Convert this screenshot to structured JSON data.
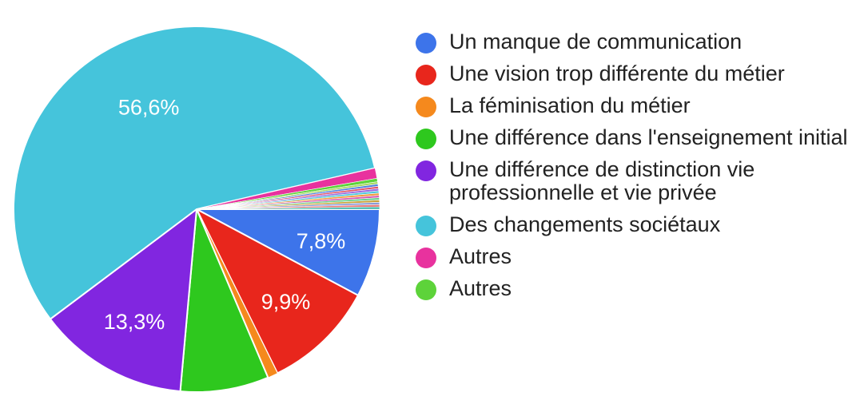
{
  "chart_data": {
    "type": "pie",
    "start_angle_deg": 90,
    "direction": "clockwise",
    "slices": [
      {
        "name": "Un manque de communication",
        "value": 7.8,
        "label": "7,8%",
        "color": "#3d74ea"
      },
      {
        "name": "Une vision trop différente du métier",
        "value": 9.9,
        "label": "9,9%",
        "color": "#e8261c"
      },
      {
        "name": "La féminisation du métier",
        "value": 0.9,
        "label": "",
        "color": "#f5891d"
      },
      {
        "name": "Une différence dans l'enseignement initial",
        "value": 7.8,
        "label": "",
        "color": "#2ec81e"
      },
      {
        "name": "Une différence de distinction vie professionnelle et vie privée",
        "value": 13.3,
        "label": "13,3%",
        "color": "#8126e0"
      },
      {
        "name": "Des changements sociétaux",
        "value": 56.6,
        "label": "56,6%",
        "color": "#45c4db"
      },
      {
        "name": "Autres",
        "value": 0.9,
        "label": "",
        "color": "#e8329e"
      },
      {
        "name": "Autres",
        "value": 0.3,
        "label": "",
        "color": "#5dd33a"
      },
      {
        "name": "",
        "value": 0.2,
        "label": "",
        "color": "#a7d860"
      },
      {
        "name": "",
        "value": 0.2,
        "label": "",
        "color": "#4e7fe0"
      },
      {
        "name": "",
        "value": 0.2,
        "label": "",
        "color": "#e0546b"
      },
      {
        "name": "",
        "value": 0.2,
        "label": "",
        "color": "#9a6be0"
      },
      {
        "name": "",
        "value": 0.2,
        "label": "",
        "color": "#4fc9d9"
      },
      {
        "name": "",
        "value": 0.2,
        "label": "",
        "color": "#ef9a3c"
      },
      {
        "name": "",
        "value": 0.2,
        "label": "",
        "color": "#d65bb0"
      },
      {
        "name": "",
        "value": 0.2,
        "label": "",
        "color": "#6acf8a"
      },
      {
        "name": "",
        "value": 0.2,
        "label": "",
        "color": "#c9a23a"
      },
      {
        "name": "",
        "value": 0.2,
        "label": "",
        "color": "#8a9ad8"
      },
      {
        "name": "",
        "value": 0.2,
        "label": "",
        "color": "#e77a7a"
      },
      {
        "name": "",
        "value": 0.2,
        "label": "",
        "color": "#3fb7a8"
      }
    ],
    "legend": {
      "position": "right",
      "items": [
        {
          "label": "Un manque de communication",
          "color": "#3d74ea"
        },
        {
          "label": "Une vision trop différente du métier",
          "color": "#e8261c"
        },
        {
          "label": "La féminisation du métier",
          "color": "#f5891d"
        },
        {
          "label": "Une différence dans l'enseignement initial",
          "color": "#2ec81e"
        },
        {
          "label": "Une différence de distinction vie professionnelle et vie privée",
          "color": "#8126e0"
        },
        {
          "label": "Des changements sociétaux",
          "color": "#45c4db"
        },
        {
          "label": "Autres",
          "color": "#e8329e"
        },
        {
          "label": "Autres",
          "color": "#5dd33a"
        }
      ]
    }
  }
}
